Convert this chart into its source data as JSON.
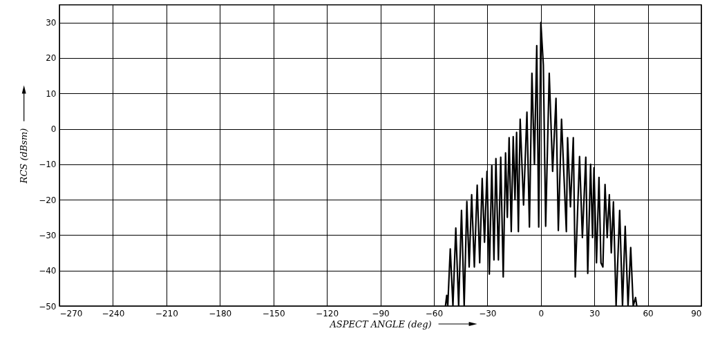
{
  "chart_data": {
    "type": "line",
    "xlabel": "ASPECT ANGLE (deg)",
    "ylabel": "RCS (dBsm)",
    "xlim": [
      -270,
      90
    ],
    "xticks": [
      -270,
      -240,
      -210,
      -180,
      -150,
      -120,
      -90,
      -60,
      -30,
      0,
      30,
      60,
      90
    ],
    "ylim": [
      -50,
      35
    ],
    "yticks": [
      -50,
      -40,
      -30,
      -20,
      -10,
      0,
      10,
      20,
      30
    ],
    "grid": true,
    "marker": "none",
    "line_style": "solid",
    "series": [
      {
        "color": "#000000",
        "x": [
          -53.5,
          -52.8,
          -52.2,
          -50.8,
          -49.3,
          -47.7,
          -46.1,
          -44.5,
          -43,
          -41.5,
          -40.2,
          -38.8,
          -37.3,
          -35.7,
          -34.3,
          -32.9,
          -31.6,
          -30.2,
          -28.9,
          -27.5,
          -26.3,
          -25.2,
          -23.8,
          -22.5,
          -21.1,
          -19.8,
          -18.8,
          -17.8,
          -16.6,
          -15.5,
          -14.5,
          -13.6,
          -12.6,
          -11.6,
          -9.7,
          -7.8,
          -6.4,
          -5,
          -3.6,
          -2.3,
          -1.2,
          0,
          1.4,
          2.7,
          4.7,
          6.6,
          8.5,
          9.8,
          11.6,
          14.3,
          15,
          16.6,
          18.2,
          19.3,
          21.7,
          23.3,
          25.2,
          26.3,
          27.9,
          29,
          29.8,
          31.2,
          32.6,
          33.7,
          34.8,
          36,
          37.2,
          38.4,
          39.5,
          40.7,
          42.2,
          44.2,
          45.8,
          47.3,
          48.9,
          50.4,
          51.8,
          53.1,
          53.8
        ],
        "values": [
          -50,
          -47,
          -50,
          -33.9,
          -50,
          -28,
          -50,
          -23,
          -50,
          -20.5,
          -39,
          -18.6,
          -39,
          -15.9,
          -37.8,
          -14,
          -32,
          -12,
          -41,
          -10.4,
          -37,
          -8.4,
          -37,
          -8,
          -41.8,
          -6.8,
          -25,
          -2.5,
          -29,
          -2.2,
          -20,
          -1,
          -29,
          2.7,
          -21.5,
          4.7,
          -27.7,
          15.7,
          -10,
          23.5,
          -27.7,
          30,
          18,
          -27.5,
          15.7,
          -12,
          8.6,
          -28.7,
          2.7,
          -29,
          -2.5,
          -22,
          -2.5,
          -41.8,
          -7.8,
          -30.7,
          -8,
          -40.8,
          -10,
          -30.7,
          -11,
          -37.8,
          -13.7,
          -37.8,
          -39,
          -15.7,
          -30.7,
          -18.6,
          -35,
          -20.6,
          -50,
          -23,
          -50,
          -27.5,
          -50,
          -33.5,
          -50,
          -47.6,
          -50
        ]
      }
    ]
  }
}
